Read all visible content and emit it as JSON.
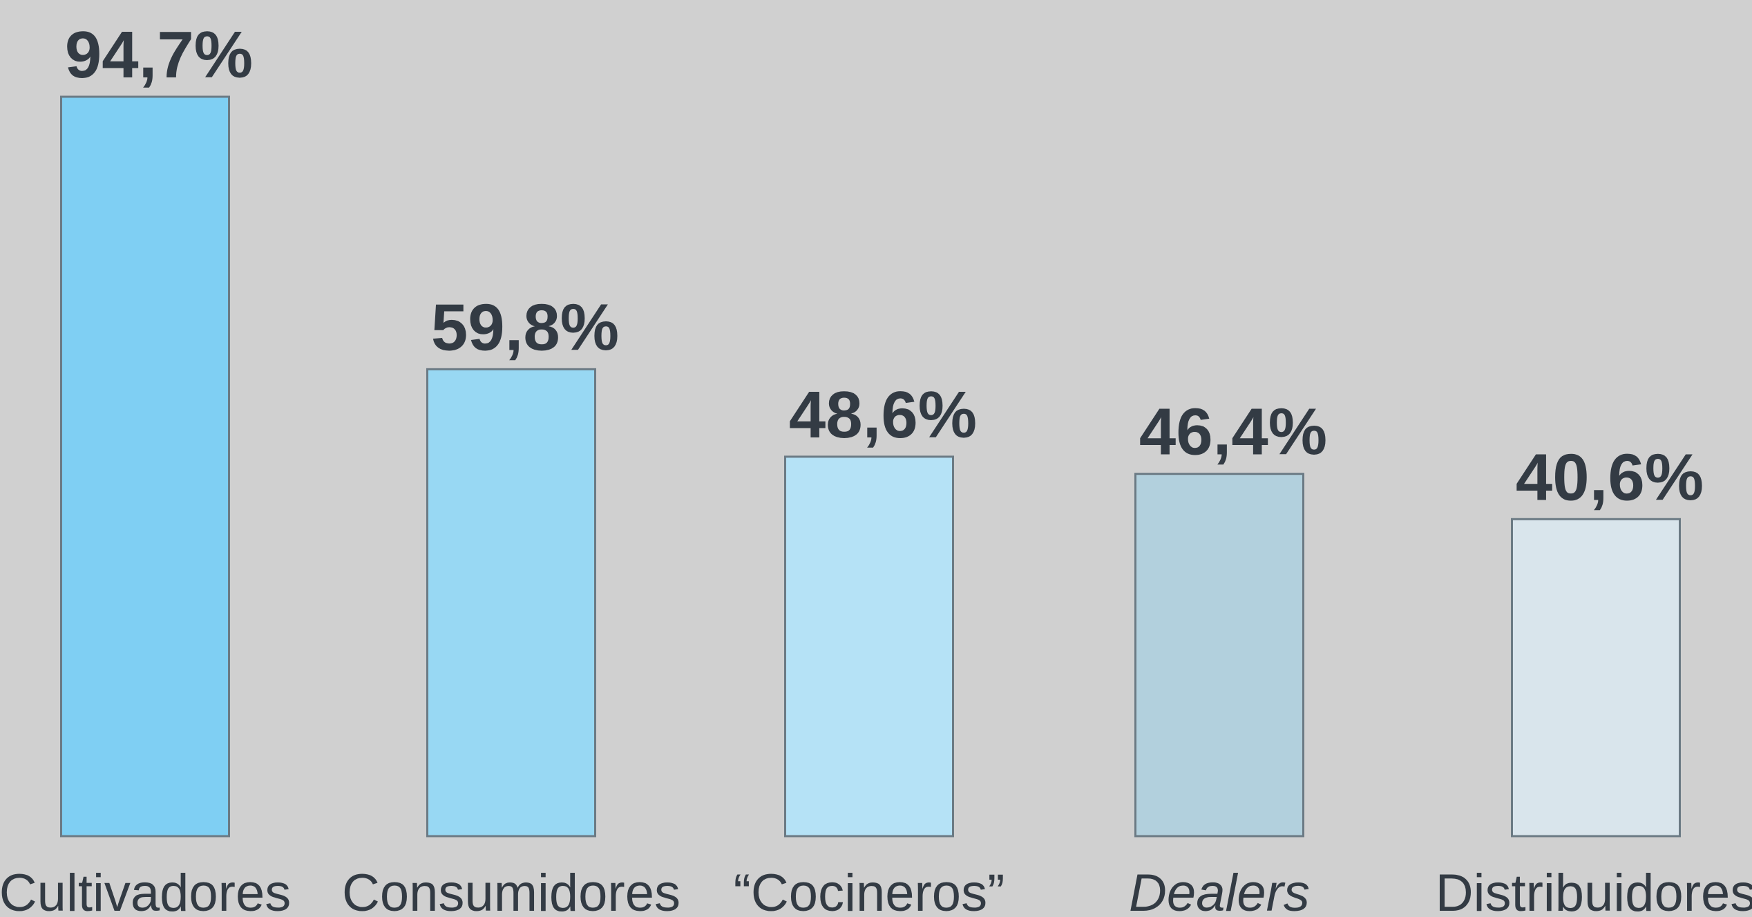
{
  "chart_data": {
    "type": "bar",
    "categories": [
      "Cultivadores",
      "Consumidores",
      "“Cocineros”",
      "Dealers",
      "Distribuidores"
    ],
    "values": [
      94.7,
      59.8,
      48.6,
      46.4,
      40.6
    ],
    "value_labels": [
      "94,7%",
      "59,8%",
      "48,6%",
      "46,4%",
      "40,6%"
    ],
    "italic_categories": [
      "Dealers"
    ],
    "bar_colors": [
      "#7fcff3",
      "#98d8f3",
      "#b5e2f6",
      "#b2d0dd",
      "#d9e5ec"
    ],
    "bar_stroke": "#6b7a84",
    "label_color": "#333b44",
    "background": "#d0d0d0",
    "ylim": [
      0,
      100
    ],
    "grid": false,
    "legend": "none"
  }
}
